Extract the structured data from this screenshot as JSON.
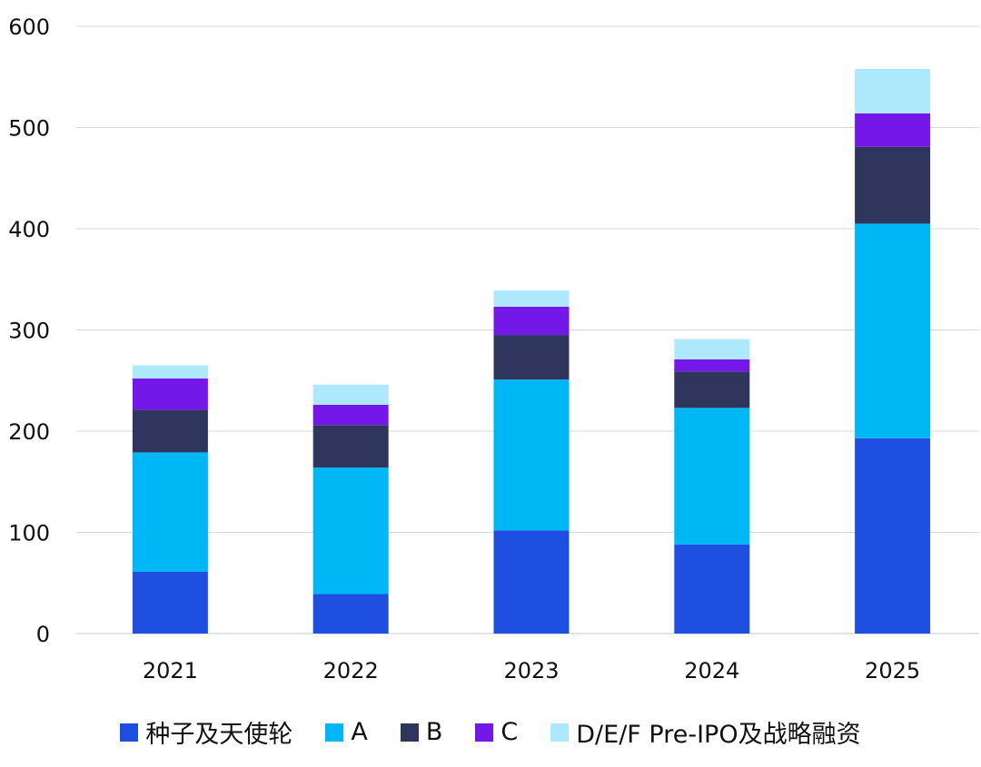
{
  "chart_data": {
    "type": "bar",
    "stacked": true,
    "categories": [
      "2021",
      "2022",
      "2023",
      "2024",
      "2025"
    ],
    "ylim": [
      0,
      600
    ],
    "yticks": [
      0,
      100,
      200,
      300,
      400,
      500,
      600
    ],
    "grid": true,
    "legend_position": "bottom",
    "series": [
      {
        "name": "种子及天使轮",
        "color": "#1f4fe0",
        "values": [
          61,
          39,
          102,
          88,
          193
        ]
      },
      {
        "name": "A",
        "color": "#00b7f5",
        "values": [
          118,
          125,
          149,
          135,
          212
        ]
      },
      {
        "name": "B",
        "color": "#30355e",
        "values": [
          42,
          42,
          44,
          36,
          76
        ]
      },
      {
        "name": "C",
        "color": "#7318e8",
        "values": [
          31,
          20,
          28,
          12,
          33
        ]
      },
      {
        "name": "D/E/F Pre-IPO及战略融资",
        "color": "#aee8fc",
        "values": [
          13,
          20,
          16,
          20,
          44
        ]
      }
    ]
  }
}
